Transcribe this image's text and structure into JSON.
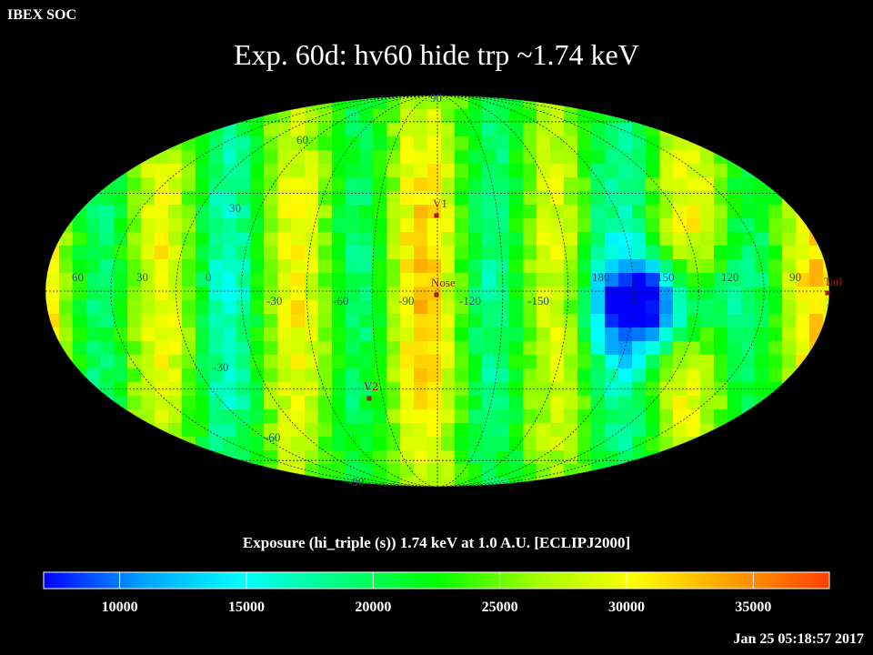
{
  "header": {
    "organization": "IBEX SOC",
    "title": "Exp.   60d: hv60 hide trp ~1.74 keV"
  },
  "map": {
    "projection": "Mollweide (ecliptic J2000)",
    "lat_labels": [
      {
        "text": "60",
        "lat": 60,
        "lon_side": "left"
      },
      {
        "text": "30",
        "lat": 30,
        "lon_side": "left"
      },
      {
        "text": "-30",
        "lat": -30,
        "lon_side": "left"
      },
      {
        "text": "-60",
        "lat": -60,
        "lon_side": "left"
      },
      {
        "text": "90",
        "lat": 90,
        "lon_side": "top"
      },
      {
        "text": "-90",
        "lat": -90,
        "lon_side": "bottom"
      }
    ],
    "lon_labels": [
      "60",
      "30",
      "0",
      "-30",
      "-60",
      "-90",
      "-120",
      "-150",
      "180",
      "150",
      "120",
      "90"
    ],
    "markers": [
      {
        "name": "V1",
        "label": "V1"
      },
      {
        "name": "Nose",
        "label": "Nose"
      },
      {
        "name": "V2",
        "label": "V2"
      },
      {
        "name": "Tail",
        "label": "Tail"
      }
    ]
  },
  "colorbar": {
    "label": "Exposure (hi_triple (s))  1.74 keV at 1.0 A.U. [ECLIPJ2000]",
    "ticks": [
      "10000",
      "15000",
      "20000",
      "25000",
      "30000",
      "35000"
    ],
    "min": 7000,
    "max": 38000,
    "colors": [
      "#0000ff",
      "#00a0ff",
      "#00ffff",
      "#00ff80",
      "#00ff00",
      "#a0ff00",
      "#ffff00",
      "#ffa000",
      "#ff4000"
    ]
  },
  "footer": {
    "timestamp": "Jan 25 05:18:57 2017"
  }
}
